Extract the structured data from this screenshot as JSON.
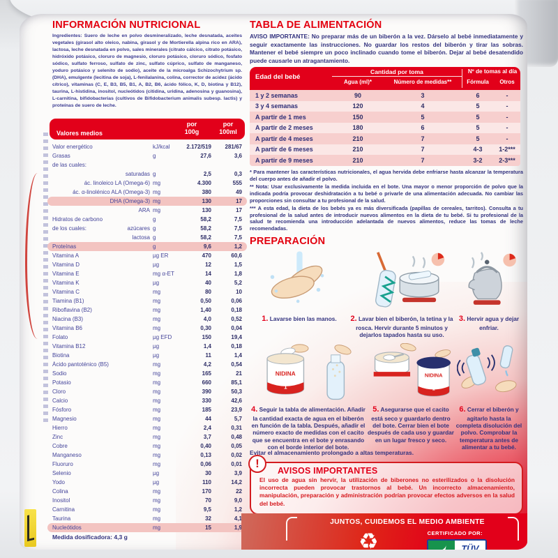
{
  "colors": {
    "brand_red": "#e2001a",
    "navy_text": "#33337f",
    "blue_text": "#3c3c92",
    "pink_highlight": "#f3c4c1",
    "row_pink_dark": "#f7cfce",
    "row_pink_light": "#fbe7e6"
  },
  "nutrition": {
    "title": "INFORMACIÓN NUTRICIONAL",
    "ingredients": "Ingredientes: Suero de leche en polvo desmineralizado, leche desnatada, aceites vegetales (girasol alto oleico, nabina, girasol y de Mortierella alpina rico en ARA), lactosa, leche desnatada en polvo, sales minerales (citrato cálcico, citrato potásico, hidróxido potásico, cloruro de magnesio, cloruro potásico, cloruro sódico, fosfato sódico, sulfato ferroso, sulfato de zinc, sulfato cúprico, sulfato de manganeso, yoduro potásico y selenito de sodio), aceite de la microalga Schizochytrium sp.(DHA), emulgente (lecitina de soja), L-fenilalanina, colina, corrector de acidez (ácido cítrico), vitaminas (C, E, B3, B5, B1, A, B2, B6, ácido fólico, K, D, biotina y B12), taurina, L-histidina, inositol, nucleótidos (citidina, uridina, adenosina y guanosina), L-carnitina, bifidobacterias (cultivos de Bifidobacterium animalis subesp. lactis) y proteínas de suero de leche.",
    "header": {
      "col1": "Valores medios",
      "col2": "por\n100g",
      "col3": "por\n100ml"
    },
    "rows": [
      {
        "label": "Valor energético",
        "unit": "kJ/kcal",
        "g": "2.172/519",
        "ml": "281/67"
      },
      {
        "label": "Grasas",
        "unit": "g",
        "g": "27,6",
        "ml": "3,6"
      },
      {
        "label": "de las cuales:"
      },
      {
        "sub": "saturadas",
        "unit": "g",
        "g": "2,5",
        "ml": "0,3"
      },
      {
        "sub": "ác. linoleico LA (Omega-6)",
        "unit": "mg",
        "g": "4.300",
        "ml": "555"
      },
      {
        "sub": "ác. α-linolénico ALA (Omega-3)",
        "unit": "mg",
        "g": "380",
        "ml": "49"
      },
      {
        "sub": "DHA (Omega-3)",
        "unit": "mg",
        "g": "130",
        "ml": "17",
        "hl": true
      },
      {
        "sub": "ARA",
        "unit": "mg",
        "g": "130",
        "ml": "17"
      },
      {
        "label": "Hidratos de carbono",
        "unit": "g",
        "g": "58,2",
        "ml": "7,5"
      },
      {
        "label": "de los cuales:",
        "sub": "azúcares",
        "unit": "g",
        "g": "58,2",
        "ml": "7,5"
      },
      {
        "sub": "lactosa",
        "unit": "g",
        "g": "58,2",
        "ml": "7,5"
      },
      {
        "label": "Proteínas",
        "unit": "g",
        "g": "9,6",
        "ml": "1,2",
        "hl": true
      },
      {
        "label": "Vitamina A",
        "unit": "µg ER",
        "g": "470",
        "ml": "60,6"
      },
      {
        "label": "Vitamina D",
        "unit": "µg",
        "g": "12",
        "ml": "1,5"
      },
      {
        "label": "Vitamina E",
        "unit": "mg α-ET",
        "g": "14",
        "ml": "1,8"
      },
      {
        "label": "Vitamina K",
        "unit": "µg",
        "g": "40",
        "ml": "5,2"
      },
      {
        "label": "Vitamina C",
        "unit": "mg",
        "g": "80",
        "ml": "10"
      },
      {
        "label": "Tiamina (B1)",
        "unit": "mg",
        "g": "0,50",
        "ml": "0,06"
      },
      {
        "label": "Riboflavina (B2)",
        "unit": "mg",
        "g": "1,40",
        "ml": "0,18"
      },
      {
        "label": "Niacina (B3)",
        "unit": "mg",
        "g": "4,0",
        "ml": "0,52"
      },
      {
        "label": "Vitamina B6",
        "unit": "mg",
        "g": "0,30",
        "ml": "0,04"
      },
      {
        "label": "Folato",
        "unit": "µg EFD",
        "g": "150",
        "ml": "19,4"
      },
      {
        "label": "Vitamina B12",
        "unit": "µg",
        "g": "1,4",
        "ml": "0,18"
      },
      {
        "label": "Biotina",
        "unit": "µg",
        "g": "11",
        "ml": "1,4"
      },
      {
        "label": "Ácido pantoténico (B5)",
        "unit": "mg",
        "g": "4,2",
        "ml": "0,54"
      },
      {
        "label": "Sodio",
        "unit": "mg",
        "g": "165",
        "ml": "21"
      },
      {
        "label": "Potasio",
        "unit": "mg",
        "g": "660",
        "ml": "85,1"
      },
      {
        "label": "Cloro",
        "unit": "mg",
        "g": "390",
        "ml": "50,3"
      },
      {
        "label": "Calcio",
        "unit": "mg",
        "g": "330",
        "ml": "42,6"
      },
      {
        "label": "Fósforo",
        "unit": "mg",
        "g": "185",
        "ml": "23,9"
      },
      {
        "label": "Magnesio",
        "unit": "mg",
        "g": "44",
        "ml": "5,7"
      },
      {
        "label": "Hierro",
        "unit": "mg",
        "g": "2,4",
        "ml": "0,31"
      },
      {
        "label": "Zinc",
        "unit": "mg",
        "g": "3,7",
        "ml": "0,48"
      },
      {
        "label": "Cobre",
        "unit": "mg",
        "g": "0,40",
        "ml": "0,05"
      },
      {
        "label": "Manganeso",
        "unit": "mg",
        "g": "0,13",
        "ml": "0,02"
      },
      {
        "label": "Fluoruro",
        "unit": "mg",
        "g": "0,06",
        "ml": "0,01"
      },
      {
        "label": "Selenio",
        "unit": "µg",
        "g": "30",
        "ml": "3,9"
      },
      {
        "label": "Yodo",
        "unit": "µg",
        "g": "110",
        "ml": "14,2"
      },
      {
        "label": "Colina",
        "unit": "mg",
        "g": "170",
        "ml": "22"
      },
      {
        "label": "Inositol",
        "unit": "mg",
        "g": "70",
        "ml": "9,0"
      },
      {
        "label": "Carnitina",
        "unit": "mg",
        "g": "9,5",
        "ml": "1,2"
      },
      {
        "label": "Taurina",
        "unit": "mg",
        "g": "32",
        "ml": "4,1"
      },
      {
        "label": "Nucleótidos",
        "unit": "mg",
        "g": "15",
        "ml": "1,9",
        "hl": true
      }
    ],
    "dosage_note": "Medida dosificadora: 4,3 g"
  },
  "feeding": {
    "title": "TABLA DE ALIMENTACIÓN",
    "important_notice": "AVISO IMPORTANTE: No preparar más de un biberón a la vez. Dárselo al bebé inmediatamente y seguir exactamente las instrucciones. No guardar los restos del biberón y tirar las sobras. Mantener el bebé siempre un poco inclinado cuando tome el biberón. Dejar al bebé desatendido puede causarle un atragantamiento.",
    "table": {
      "age_header": "Edad del bebé",
      "group_amount": "Cantidad por toma",
      "group_feeds": "Nº de tomas al día",
      "water_header": "Agua (ml)*",
      "scoops_header": "Número de medidas**",
      "formula_header": "Fórmula",
      "others_header": "Otros",
      "rows": [
        {
          "age": "1 y 2 semanas",
          "water": "90",
          "scoops": "3",
          "formula": "6",
          "others": "-"
        },
        {
          "age": "3 y 4 semanas",
          "water": "120",
          "scoops": "4",
          "formula": "5",
          "others": "-"
        },
        {
          "age": "A partir de 1 mes",
          "water": "150",
          "scoops": "5",
          "formula": "5",
          "others": "-"
        },
        {
          "age": "A partir de 2 meses",
          "water": "180",
          "scoops": "6",
          "formula": "5",
          "others": "-"
        },
        {
          "age": "A partir de 4 meses",
          "water": "210",
          "scoops": "7",
          "formula": "5",
          "others": "-"
        },
        {
          "age": "A partir de 6 meses",
          "water": "210",
          "scoops": "7",
          "formula": "4-3",
          "others": "1-2***"
        },
        {
          "age": "A partir de 9 meses",
          "water": "210",
          "scoops": "7",
          "formula": "3-2",
          "others": "2-3***"
        }
      ]
    },
    "footnotes": [
      "* Para mantener las características nutricionales, el agua hervida debe enfriarse hasta alcanzar la temperatura del cuerpo antes de añadir el polvo.",
      "** Nota: Usar exclusivamente la medida incluida en el bote. Una mayor o menor proporción de polvo que la indicada podría provocar deshidratación a tu bebé o privarle de una alimentación adecuada. No cambiar las proporciones sin consultar a tu profesional de la salud.",
      "*** A esta edad, la dieta de los bebés ya es más diversificada (papillas de cereales, tarritos). Consulta a tu profesional de la salud antes de introducir nuevos alimentos en la dieta de tu bebé. Si tu profesional de la salud te recomienda una introducción adelantada de nuevos alimentos, reduce las tomas de leche recomendadas."
    ]
  },
  "preparation": {
    "title": "PREPARACIÓN",
    "steps": [
      {
        "num": "1.",
        "text": "Lavarse bien las manos.",
        "icon": "hands-washing-icon"
      },
      {
        "num": "2.",
        "text": "Lavar bien el biberón, la tetina y la rosca. Hervir durante 5 minutos y dejarlos tapados hasta su uso.",
        "icon": "bottle-brush-pot-icon"
      },
      {
        "num": "3.",
        "text": "Hervir agua y dejar enfriar.",
        "icon": "kettle-icon"
      },
      {
        "num": "4.",
        "text": "Seguir la tabla de alimentación. Añadir la cantidad exacta de agua en el biberón en función de la tabla. Después, añadir el número exacto de medidas con el cacito que se encuentra en el bote y enrasando con el borde interior del bote.",
        "icon": "can-scoop-bottle-icon"
      },
      {
        "num": "5.",
        "text": "Asegurarse que el cacito está seco y guardarlo dentro del bote. Cerrar bien el bote después de cada uso y guardar en un lugar fresco y seco.",
        "icon": "scoop-in-can-close-icon"
      },
      {
        "num": "6.",
        "text": "Cerrar el biberón y agitarlo hasta la completa disolución del polvo. Comprobar la temperatura antes de alimentar a tu bebé.",
        "icon": "shake-bottle-icon"
      }
    ],
    "storage_note": "Evitar el almacenamiento prolongado a altas temperaturas."
  },
  "warnings": {
    "icon_glyph": "!",
    "title": "AVISOS IMPORTANTES",
    "text": "El uso de agua sin hervir, la utilización de biberones no esterilizados o la disolución incorrecta pueden provocar trastornos al bebé. Un incorrecto almacenamiento, manipulación, preparación y administración podrían provocar efectos adversos en la salud del bebé."
  },
  "footer": {
    "environment": "JUNTOS, CUIDEMOS EL MEDIO AMBIENTE",
    "certified_by": "CERTIFICADO POR:",
    "tuv_label": "TÜV",
    "recycle_glyph": "♻"
  },
  "can_graphics": {
    "can_label": "NIDINA",
    "can_number": "1"
  }
}
